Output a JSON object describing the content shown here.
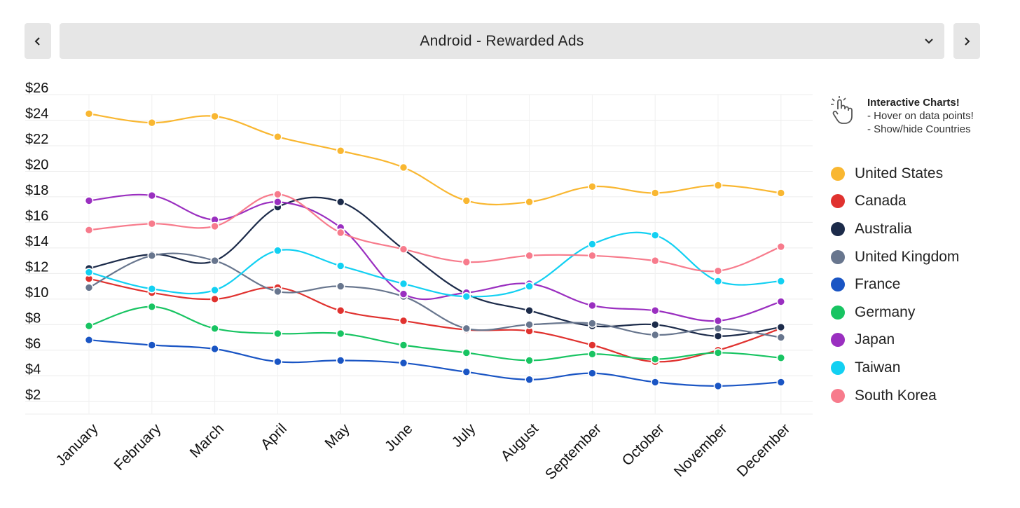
{
  "selector": {
    "title": "Android - Rewarded Ads"
  },
  "hint": {
    "title": "Interactive Charts!",
    "line1": "- Hover on data points!",
    "line2": "- Show/hide Countries"
  },
  "chart_data": {
    "type": "line",
    "title": "Android - Rewarded Ads",
    "xlabel": "",
    "ylabel": "",
    "categories": [
      "January",
      "February",
      "March",
      "April",
      "May",
      "June",
      "July",
      "August",
      "September",
      "October",
      "November",
      "December"
    ],
    "y_ticks": [
      "$2",
      "$4",
      "$6",
      "$8",
      "$10",
      "$12",
      "$14",
      "$16",
      "$18",
      "$20",
      "$22",
      "$24",
      "$26"
    ],
    "ylim": [
      1,
      26
    ],
    "grid": true,
    "legend_position": "right",
    "series": [
      {
        "name": "United States",
        "color": "#f9b731",
        "values": [
          24.5,
          23.8,
          24.3,
          22.7,
          21.6,
          20.3,
          17.7,
          17.6,
          18.8,
          18.3,
          18.9,
          18.3
        ]
      },
      {
        "name": "Canada",
        "color": "#e0322f",
        "values": [
          11.6,
          10.5,
          10.0,
          10.9,
          9.1,
          8.3,
          7.6,
          7.5,
          6.4,
          5.1,
          6.0,
          7.7
        ]
      },
      {
        "name": "Australia",
        "color": "#1c2b4a",
        "values": [
          12.4,
          13.5,
          13.0,
          17.2,
          17.6,
          13.9,
          10.4,
          9.1,
          7.9,
          8.0,
          7.1,
          7.8
        ]
      },
      {
        "name": "United Kingdom",
        "color": "#68768e",
        "values": [
          10.9,
          13.4,
          13.0,
          10.6,
          11.0,
          10.2,
          7.7,
          8.0,
          8.1,
          7.2,
          7.7,
          7.0
        ]
      },
      {
        "name": "France",
        "color": "#1a55c4",
        "values": [
          6.8,
          6.4,
          6.1,
          5.1,
          5.2,
          5.0,
          4.3,
          3.7,
          4.2,
          3.5,
          3.2,
          3.5
        ]
      },
      {
        "name": "Germany",
        "color": "#18c462",
        "values": [
          7.9,
          9.4,
          7.7,
          7.3,
          7.3,
          6.4,
          5.8,
          5.2,
          5.7,
          5.3,
          5.8,
          5.4
        ]
      },
      {
        "name": "Japan",
        "color": "#9a2fc0",
        "values": [
          17.7,
          18.1,
          16.2,
          17.6,
          15.6,
          10.4,
          10.5,
          11.2,
          9.5,
          9.1,
          8.3,
          9.8
        ]
      },
      {
        "name": "Taiwan",
        "color": "#12d0f2",
        "values": [
          12.1,
          10.8,
          10.7,
          13.8,
          12.6,
          11.2,
          10.2,
          11.0,
          14.3,
          15.0,
          11.4,
          11.4
        ]
      },
      {
        "name": "South Korea",
        "color": "#f77b8c",
        "values": [
          15.4,
          15.9,
          15.7,
          18.2,
          15.2,
          13.9,
          12.9,
          13.4,
          13.4,
          13.0,
          12.2,
          14.1
        ]
      }
    ]
  }
}
